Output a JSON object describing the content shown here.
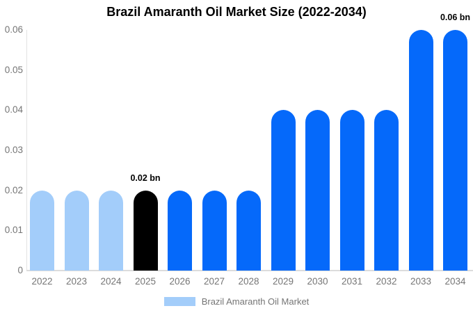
{
  "chart_data": {
    "type": "bar",
    "title": "Brazil Amaranth Oil Market Size (2022-2034)",
    "categories": [
      "2022",
      "2023",
      "2024",
      "2025",
      "2026",
      "2027",
      "2028",
      "2029",
      "2030",
      "2031",
      "2032",
      "2033",
      "2034"
    ],
    "values": [
      0.02,
      0.02,
      0.02,
      0.02,
      0.02,
      0.02,
      0.02,
      0.04,
      0.04,
      0.04,
      0.04,
      0.06,
      0.06
    ],
    "unit": "bn",
    "bar_color_keys": [
      "history",
      "history",
      "history",
      "base_year",
      "forecast",
      "forecast",
      "forecast",
      "forecast",
      "forecast",
      "forecast",
      "forecast",
      "forecast",
      "forecast"
    ],
    "series_colors": {
      "history": "#a3cdfa",
      "base_year": "#000000",
      "forecast": "#0569fa"
    },
    "annotations": [
      {
        "category": "2025",
        "label": "0.02 bn"
      },
      {
        "category": "2034",
        "label": "0.06 bn"
      }
    ],
    "y_tick_labels": [
      "0",
      "0.01",
      "0.02",
      "0.03",
      "0.04",
      "0.05",
      "0.06"
    ],
    "y_tick_values": [
      0,
      0.01,
      0.02,
      0.03,
      0.04,
      0.05,
      0.06
    ],
    "ylim": [
      0,
      0.06
    ],
    "grid": false,
    "legend": {
      "label": "Brazil Amaranth Oil Market",
      "swatch_color": "#a3cdfa",
      "position": "bottom"
    },
    "text_colors": {
      "title": "#000000",
      "axis": "#757575",
      "annotation": "#000000"
    },
    "axis_line_color": "#dcdcdc"
  }
}
